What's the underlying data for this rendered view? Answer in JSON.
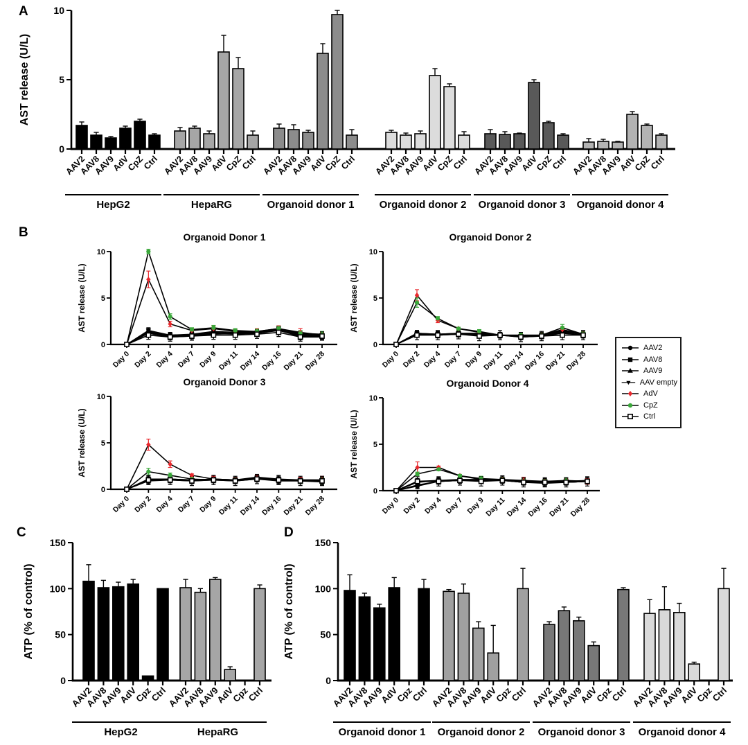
{
  "figure": {
    "panels": {
      "a_label": "A",
      "b_label": "B",
      "c_label": "C",
      "d_label": "D"
    },
    "colors": {
      "adv_red": "#e8282d",
      "cpz_green": "#3aa83a",
      "hepg2_black": "#000000",
      "heparg_gray": "#a6a6a6",
      "donor1_gray": "#8c8c8c",
      "donor2_gray": "#dcdcdc",
      "donor3_gray": "#595959",
      "donor4_gray": "#b3b3b3"
    }
  },
  "legend": {
    "entries": [
      {
        "label": "AAV2",
        "marker": "circle-filled",
        "color": "#000000"
      },
      {
        "label": "AAV8",
        "marker": "square-filled",
        "color": "#000000"
      },
      {
        "label": "AAV9",
        "marker": "triangle-up-filled",
        "color": "#000000"
      },
      {
        "label": "AAV empty",
        "marker": "triangle-down-filled",
        "color": "#000000"
      },
      {
        "label": "AdV",
        "marker": "diamond-filled",
        "color": "#e8282d"
      },
      {
        "label": "CpZ",
        "marker": "circle-filled",
        "color": "#3aa83a"
      },
      {
        "label": "Ctrl",
        "marker": "square-open",
        "color": "#000000"
      }
    ]
  },
  "chart_data": [
    {
      "id": "panelA",
      "type": "bar",
      "title": "",
      "xlabel": "",
      "ylabel": "AST release (U/L)",
      "ylim": [
        0,
        10
      ],
      "yticks": [
        0,
        5,
        10
      ],
      "categories": [
        "AAV2",
        "AAV8",
        "AAV9",
        "AdV",
        "CpZ",
        "Ctrl"
      ],
      "groups": [
        {
          "name": "HepG2",
          "color": "#000000",
          "values": [
            1.7,
            1.0,
            0.8,
            1.5,
            2.0,
            1.0
          ],
          "errors": [
            0.25,
            0.2,
            0.1,
            0.15,
            0.15,
            0.1
          ]
        },
        {
          "name": "HepaRG",
          "color": "#a6a6a6",
          "values": [
            1.3,
            1.5,
            1.1,
            7.0,
            5.8,
            1.0
          ],
          "errors": [
            0.25,
            0.15,
            0.2,
            1.2,
            0.8,
            0.3
          ]
        },
        {
          "name": "Organoid donor 1",
          "color": "#8c8c8c",
          "values": [
            1.5,
            1.4,
            1.2,
            6.9,
            9.7,
            1.0
          ],
          "errors": [
            0.3,
            0.35,
            0.15,
            0.7,
            0.3,
            0.4
          ]
        },
        {
          "name": "Organoid donor 2",
          "color": "#dcdcdc",
          "values": [
            1.2,
            1.0,
            1.1,
            5.3,
            4.5,
            1.0
          ],
          "errors": [
            0.15,
            0.15,
            0.2,
            0.5,
            0.2,
            0.25
          ]
        },
        {
          "name": "Organoid donor 3",
          "color": "#595959",
          "values": [
            1.1,
            1.05,
            1.1,
            4.8,
            1.9,
            1.0
          ],
          "errors": [
            0.3,
            0.2,
            0.05,
            0.2,
            0.1,
            0.1
          ]
        },
        {
          "name": "Organoid donor 4",
          "color": "#b3b3b3",
          "values": [
            0.5,
            0.55,
            0.5,
            2.5,
            1.7,
            1.0
          ],
          "errors": [
            0.25,
            0.15,
            0.05,
            0.2,
            0.1,
            0.1
          ]
        }
      ]
    },
    {
      "id": "panelB1",
      "type": "line",
      "title": "Organoid Donor 1",
      "ylabel": "AST release (U/L)",
      "ylim": [
        0,
        10
      ],
      "yticks": [
        0,
        5,
        10
      ],
      "x_labels": [
        "Day 0",
        "Day 2",
        "Day 4",
        "Day 7",
        "Day 9",
        "Day 11",
        "Day 14",
        "Day 16",
        "Day 21",
        "Day 28"
      ],
      "series": [
        {
          "name": "AAV2",
          "marker": "circle-filled",
          "color": "#000000",
          "values": [
            0,
            1.3,
            0.9,
            1.0,
            1.1,
            1.2,
            1.2,
            1.5,
            0.9,
            0.9
          ],
          "err": 0.3
        },
        {
          "name": "AAV8",
          "marker": "square-filled",
          "color": "#000000",
          "values": [
            0,
            1.2,
            0.8,
            0.9,
            1.2,
            1.1,
            1.2,
            1.6,
            0.8,
            0.8
          ],
          "err": 0.3
        },
        {
          "name": "AAV9",
          "marker": "triangle-up-filled",
          "color": "#000000",
          "values": [
            0,
            1.4,
            0.9,
            1.0,
            1.3,
            1.2,
            1.3,
            1.6,
            1.0,
            0.9
          ],
          "err": 0.3
        },
        {
          "name": "AAV empty",
          "marker": "triangle-down-filled",
          "color": "#000000",
          "values": [
            0,
            1.5,
            1.0,
            1.1,
            1.4,
            1.3,
            1.3,
            1.7,
            1.1,
            1.0
          ],
          "err": 0.3
        },
        {
          "name": "AdV",
          "marker": "diamond-filled",
          "color": "#e8282d",
          "values": [
            0,
            7.0,
            2.2,
            1.5,
            1.7,
            1.4,
            1.4,
            1.7,
            1.3,
            1.0
          ],
          "errors": [
            0,
            0.9,
            0.3,
            0.2,
            0.3,
            0.25,
            0.3,
            0.3,
            0.4,
            0.3
          ]
        },
        {
          "name": "CpZ",
          "marker": "circle-filled",
          "color": "#3aa83a",
          "values": [
            0,
            10.0,
            3.0,
            1.6,
            1.8,
            1.5,
            1.4,
            1.7,
            1.2,
            1.1
          ],
          "errors": [
            0,
            0.25,
            0.3,
            0.2,
            0.25,
            0.2,
            0.25,
            0.25,
            0.3,
            0.3
          ]
        },
        {
          "name": "Ctrl",
          "marker": "square-open",
          "color": "#000000",
          "values": [
            0,
            1.0,
            0.8,
            0.9,
            1.0,
            1.0,
            1.1,
            1.3,
            0.8,
            0.9
          ],
          "err": 0.45
        }
      ]
    },
    {
      "id": "panelB2",
      "type": "line",
      "title": "Organoid Donor 2",
      "ylabel": "AST release (U/L)",
      "ylim": [
        0,
        10
      ],
      "yticks": [
        0,
        5,
        10
      ],
      "x_labels": [
        "Day 0",
        "Day 2",
        "Day 4",
        "Day 7",
        "Day 9",
        "Day 11",
        "Day 14",
        "Day 16",
        "Day 21",
        "Day 28"
      ],
      "series": [
        {
          "name": "AAV2",
          "marker": "circle-filled",
          "color": "#000000",
          "values": [
            0,
            1.1,
            1.1,
            1.1,
            1.1,
            1.0,
            0.9,
            0.9,
            1.3,
            1.0
          ],
          "err": 0.3
        },
        {
          "name": "AAV8",
          "marker": "square-filled",
          "color": "#000000",
          "values": [
            0,
            1.1,
            1.0,
            1.1,
            1.0,
            1.0,
            0.8,
            0.9,
            1.2,
            1.0
          ],
          "err": 0.3
        },
        {
          "name": "AAV9",
          "marker": "triangle-up-filled",
          "color": "#000000",
          "values": [
            0,
            1.2,
            1.1,
            1.2,
            1.1,
            1.0,
            0.9,
            1.0,
            1.4,
            1.1
          ],
          "err": 0.3
        },
        {
          "name": "AAV empty",
          "marker": "triangle-down-filled",
          "color": "#000000",
          "values": [
            0,
            1.2,
            1.1,
            1.2,
            1.2,
            1.0,
            0.9,
            1.0,
            1.5,
            1.1
          ],
          "err": 0.3
        },
        {
          "name": "AdV",
          "marker": "diamond-filled",
          "color": "#e8282d",
          "values": [
            0,
            5.3,
            2.6,
            1.7,
            1.3,
            1.0,
            0.9,
            1.0,
            1.6,
            1.1
          ],
          "errors": [
            0,
            0.6,
            0.25,
            0.15,
            0.2,
            0.15,
            0.2,
            0.2,
            0.3,
            0.25
          ]
        },
        {
          "name": "CpZ",
          "marker": "circle-filled",
          "color": "#3aa83a",
          "values": [
            0,
            4.5,
            2.8,
            1.7,
            1.4,
            1.0,
            1.0,
            1.0,
            1.8,
            1.1
          ],
          "errors": [
            0,
            0.5,
            0.2,
            0.15,
            0.2,
            0.15,
            0.2,
            0.2,
            0.35,
            0.25
          ]
        },
        {
          "name": "Ctrl",
          "marker": "square-open",
          "color": "#000000",
          "values": [
            0,
            1.0,
            1.0,
            1.1,
            0.9,
            1.0,
            0.8,
            0.9,
            1.0,
            1.0
          ],
          "err": 0.5
        }
      ]
    },
    {
      "id": "panelB3",
      "type": "line",
      "title": "Organoid Donor 3",
      "ylabel": "AST release (U/L)",
      "ylim": [
        0,
        10
      ],
      "yticks": [
        0,
        5,
        10
      ],
      "x_labels": [
        "Day 0",
        "Day 2",
        "Day 4",
        "Day 7",
        "Day 9",
        "Day 11",
        "Day 14",
        "Day 16",
        "Day 21",
        "Day 28"
      ],
      "series": [
        {
          "name": "AAV2",
          "marker": "circle-filled",
          "color": "#000000",
          "values": [
            0,
            1.0,
            1.0,
            1.0,
            1.0,
            1.0,
            1.2,
            1.0,
            0.9,
            0.9
          ],
          "err": 0.3
        },
        {
          "name": "AAV8",
          "marker": "square-filled",
          "color": "#000000",
          "values": [
            0,
            0.9,
            1.0,
            0.9,
            1.0,
            0.9,
            1.1,
            0.9,
            0.9,
            0.8
          ],
          "err": 0.3
        },
        {
          "name": "AAV9",
          "marker": "triangle-up-filled",
          "color": "#000000",
          "values": [
            0,
            1.0,
            1.1,
            1.0,
            1.1,
            1.0,
            1.2,
            1.0,
            1.0,
            0.9
          ],
          "err": 0.3
        },
        {
          "name": "AAV empty",
          "marker": "triangle-down-filled",
          "color": "#000000",
          "values": [
            0,
            1.1,
            1.1,
            1.0,
            1.1,
            1.0,
            1.3,
            1.1,
            1.0,
            1.0
          ],
          "err": 0.3
        },
        {
          "name": "AdV",
          "marker": "diamond-filled",
          "color": "#e8282d",
          "values": [
            0,
            4.8,
            2.7,
            1.5,
            1.1,
            1.0,
            1.2,
            1.0,
            1.0,
            1.0
          ],
          "errors": [
            0,
            0.6,
            0.35,
            0.15,
            0.3,
            0.2,
            0.3,
            0.25,
            0.3,
            0.4
          ]
        },
        {
          "name": "CpZ",
          "marker": "circle-filled",
          "color": "#3aa83a",
          "values": [
            0,
            1.9,
            1.5,
            1.1,
            1.0,
            1.0,
            1.1,
            1.0,
            0.9,
            0.9
          ],
          "errors": [
            0,
            0.35,
            0.25,
            0.15,
            0.2,
            0.15,
            0.2,
            0.2,
            0.25,
            0.3
          ]
        },
        {
          "name": "Ctrl",
          "marker": "square-open",
          "color": "#000000",
          "values": [
            0,
            1.0,
            1.0,
            0.9,
            1.0,
            0.9,
            1.1,
            1.0,
            0.9,
            0.9
          ],
          "err": 0.5
        }
      ]
    },
    {
      "id": "panelB4",
      "type": "line",
      "title": "Organoid Donor 4",
      "ylabel": "AST release (U/L)",
      "ylim": [
        0,
        10
      ],
      "yticks": [
        0,
        5,
        10
      ],
      "x_labels": [
        "Day 0",
        "Day 2",
        "Day 4",
        "Day 7",
        "Day 9",
        "Day 11",
        "Day 14",
        "Day 16",
        "Day 21",
        "Day 28"
      ],
      "series": [
        {
          "name": "AAV2",
          "marker": "circle-filled",
          "color": "#000000",
          "values": [
            0,
            0.5,
            1.0,
            1.1,
            1.1,
            1.1,
            0.9,
            0.9,
            0.9,
            1.0
          ],
          "err": 0.3
        },
        {
          "name": "AAV8",
          "marker": "square-filled",
          "color": "#000000",
          "values": [
            0,
            0.6,
            1.0,
            1.1,
            1.1,
            1.1,
            0.9,
            0.8,
            0.9,
            1.0
          ],
          "err": 0.3
        },
        {
          "name": "AAV9",
          "marker": "triangle-up-filled",
          "color": "#000000",
          "values": [
            0,
            0.9,
            1.1,
            1.1,
            1.2,
            1.1,
            1.0,
            0.9,
            0.9,
            1.0
          ],
          "err": 0.3
        },
        {
          "name": "AAV empty",
          "marker": "triangle-down-filled",
          "color": "#000000",
          "values": [
            0,
            1.0,
            1.1,
            1.2,
            1.2,
            1.2,
            1.0,
            1.0,
            1.0,
            1.1
          ],
          "err": 0.3
        },
        {
          "name": "AdV",
          "marker": "diamond-filled",
          "color": "#e8282d",
          "values": [
            0,
            2.5,
            2.5,
            1.6,
            1.2,
            1.2,
            1.1,
            1.0,
            1.0,
            1.0
          ],
          "errors": [
            0,
            0.6,
            0.15,
            0.15,
            0.2,
            0.2,
            0.35,
            0.2,
            0.25,
            0.3
          ]
        },
        {
          "name": "CpZ",
          "marker": "circle-filled",
          "color": "#3aa83a",
          "values": [
            0,
            1.8,
            2.3,
            1.6,
            1.3,
            1.2,
            1.0,
            1.0,
            1.1,
            1.0
          ],
          "errors": [
            0,
            0.2,
            0.15,
            0.15,
            0.25,
            0.2,
            0.25,
            0.2,
            0.3,
            0.25
          ]
        },
        {
          "name": "Ctrl",
          "marker": "square-open",
          "color": "#000000",
          "values": [
            0,
            1.0,
            1.0,
            1.1,
            1.0,
            1.1,
            0.9,
            0.9,
            0.9,
            1.0
          ],
          "err": 0.5
        }
      ]
    },
    {
      "id": "panelC",
      "type": "bar",
      "title": "",
      "xlabel": "",
      "ylabel": "ATP (% of control)",
      "ylim": [
        0,
        150
      ],
      "yticks": [
        0,
        50,
        100,
        150
      ],
      "categories": [
        "AAV2",
        "AAV8",
        "AAV9",
        "AdV",
        "Cpz",
        "Ctrl"
      ],
      "groups": [
        {
          "name": "HepG2",
          "color": "#000000",
          "values": [
            108,
            101,
            102,
            105,
            5,
            100
          ],
          "errors": [
            18,
            8,
            5,
            5,
            0,
            0
          ]
        },
        {
          "name": "HepaRG",
          "color": "#a6a6a6",
          "values": [
            101,
            96,
            110,
            12,
            0,
            100
          ],
          "errors": [
            9,
            4,
            2,
            3,
            0,
            4
          ]
        }
      ]
    },
    {
      "id": "panelD",
      "type": "bar",
      "title": "",
      "xlabel": "",
      "ylabel": "ATP (% of control)",
      "ylim": [
        0,
        150
      ],
      "yticks": [
        0,
        50,
        100,
        150
      ],
      "categories": [
        "AAV2",
        "AAV8",
        "AAV9",
        "AdV",
        "Cpz",
        "Ctrl"
      ],
      "groups": [
        {
          "name": "Organoid donor 1",
          "color": "#000000",
          "values": [
            98,
            91,
            79,
            101,
            0,
            100
          ],
          "errors": [
            17,
            4,
            4,
            11,
            0,
            10
          ]
        },
        {
          "name": "Organoid donor 2",
          "color": "#a0a0a0",
          "values": [
            97,
            95,
            57,
            30,
            0,
            100
          ],
          "errors": [
            2,
            10,
            7,
            30,
            0,
            22
          ]
        },
        {
          "name": "Organoid donor 3",
          "color": "#787878",
          "values": [
            61,
            76,
            65,
            38,
            0,
            99
          ],
          "errors": [
            3,
            4,
            4,
            4,
            0,
            2
          ]
        },
        {
          "name": "Organoid donor 4",
          "color": "#d9d9d9",
          "values": [
            73,
            77,
            74,
            18,
            0,
            100
          ],
          "errors": [
            15,
            25,
            10,
            2,
            0,
            22
          ]
        }
      ]
    }
  ]
}
